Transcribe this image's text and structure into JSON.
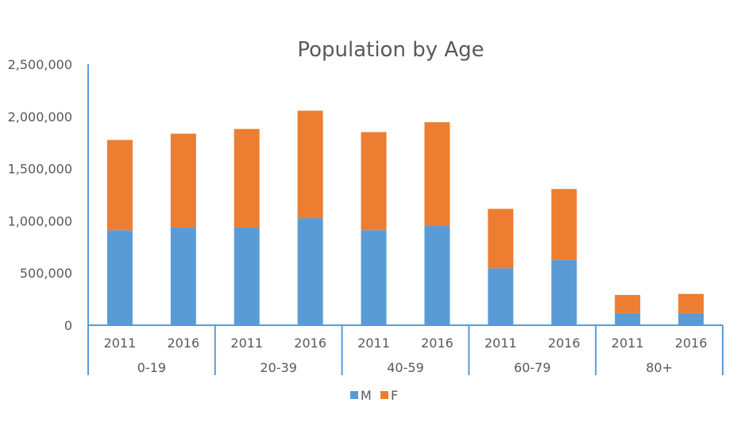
{
  "chart_data": {
    "type": "bar",
    "stacked": true,
    "title": "Population by Age",
    "xlabel": "",
    "ylabel": "",
    "ylim": [
      0,
      2500000
    ],
    "y_ticks": [
      0,
      500000,
      1000000,
      1500000,
      2000000,
      2500000
    ],
    "y_tick_labels": [
      "0",
      "500,000",
      "1,000,000",
      "1,500,000",
      "2,000,000",
      "2,500,000"
    ],
    "grid": false,
    "legend_position": "bottom",
    "groups": [
      {
        "label": "0-19",
        "categories": [
          "2011",
          "2016"
        ]
      },
      {
        "label": "20-39",
        "categories": [
          "2011",
          "2016"
        ]
      },
      {
        "label": "40-59",
        "categories": [
          "2011",
          "2016"
        ]
      },
      {
        "label": "60-79",
        "categories": [
          "2011",
          "2016"
        ]
      },
      {
        "label": "80+",
        "categories": [
          "2011",
          "2016"
        ]
      }
    ],
    "series": [
      {
        "name": "M",
        "color": "#5b9bd5",
        "values": [
          910000,
          940000,
          935000,
          1025000,
          910000,
          950000,
          545000,
          625000,
          115000,
          115000
        ]
      },
      {
        "name": "F",
        "color": "#ed7d31",
        "values": [
          865000,
          895000,
          945000,
          1030000,
          940000,
          995000,
          570000,
          680000,
          175000,
          185000
        ]
      }
    ]
  }
}
